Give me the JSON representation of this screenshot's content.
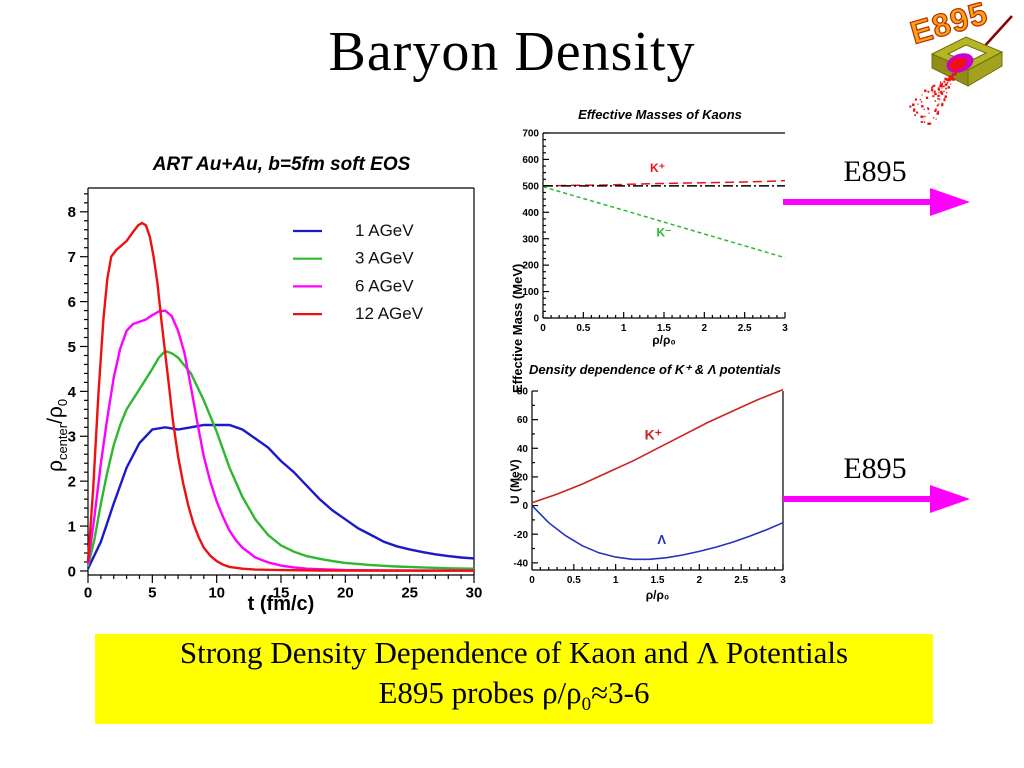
{
  "slide": {
    "title": "Baryon Density",
    "logo_text": "E895",
    "arrow_color": "#ff00ff",
    "callouts": [
      {
        "label": "E895"
      },
      {
        "label": "E895"
      }
    ],
    "banner": {
      "bg_color": "#ffff00",
      "line1": "Strong Density Dependence of Kaon and Λ Potentials",
      "line2_prefix": "E895 probes ρ/ρ",
      "line2_sub": "0",
      "line2_suffix": "≈3-6"
    }
  },
  "chart_data": [
    {
      "id": "density-evolution",
      "type": "line",
      "title": "ART Au+Au, b=5fm soft EOS",
      "xlabel": "t (fm/c)",
      "ylabel_parts": [
        "ρ",
        "center",
        "/ρ",
        "0"
      ],
      "xlim": [
        0,
        30
      ],
      "ylim": [
        -0.09,
        8.53
      ],
      "x_major": 5,
      "x_minor": 1,
      "y_major": 1,
      "y_minor": 0.2,
      "frame_sides": [
        "top",
        "bottom",
        "left",
        "right"
      ],
      "legend_position": "upper-right-inside",
      "grid": false,
      "series": [
        {
          "name": "1 AGeV",
          "color": "#1a1acc",
          "points": [
            [
              0,
              0.05
            ],
            [
              1,
              0.65
            ],
            [
              2,
              1.5
            ],
            [
              3,
              2.3
            ],
            [
              4,
              2.85
            ],
            [
              5,
              3.15
            ],
            [
              6,
              3.2
            ],
            [
              7,
              3.15
            ],
            [
              8,
              3.2
            ],
            [
              9,
              3.25
            ],
            [
              10,
              3.25
            ],
            [
              11,
              3.25
            ],
            [
              12,
              3.15
            ],
            [
              13,
              2.95
            ],
            [
              14,
              2.75
            ],
            [
              15,
              2.45
            ],
            [
              16,
              2.2
            ],
            [
              17,
              1.9
            ],
            [
              18,
              1.6
            ],
            [
              19,
              1.35
            ],
            [
              20,
              1.15
            ],
            [
              21,
              0.95
            ],
            [
              22,
              0.8
            ],
            [
              23,
              0.65
            ],
            [
              24,
              0.55
            ],
            [
              25,
              0.48
            ],
            [
              26,
              0.42
            ],
            [
              27,
              0.37
            ],
            [
              28,
              0.33
            ],
            [
              29,
              0.3
            ],
            [
              30,
              0.28
            ]
          ]
        },
        {
          "name": "3 AGeV",
          "color": "#2db82d",
          "points": [
            [
              0,
              0.1
            ],
            [
              0.5,
              0.7
            ],
            [
              1,
              1.5
            ],
            [
              1.5,
              2.2
            ],
            [
              2,
              2.8
            ],
            [
              2.5,
              3.25
            ],
            [
              3,
              3.6
            ],
            [
              4,
              4.05
            ],
            [
              5,
              4.5
            ],
            [
              5.5,
              4.75
            ],
            [
              6,
              4.9
            ],
            [
              6.5,
              4.85
            ],
            [
              7,
              4.75
            ],
            [
              8,
              4.4
            ],
            [
              8.5,
              4.1
            ],
            [
              9,
              3.8
            ],
            [
              10,
              3.1
            ],
            [
              11,
              2.3
            ],
            [
              12,
              1.65
            ],
            [
              13,
              1.15
            ],
            [
              14,
              0.8
            ],
            [
              15,
              0.57
            ],
            [
              16,
              0.43
            ],
            [
              17,
              0.33
            ],
            [
              18,
              0.27
            ],
            [
              19,
              0.22
            ],
            [
              20,
              0.18
            ],
            [
              22,
              0.13
            ],
            [
              24,
              0.1
            ],
            [
              26,
              0.08
            ],
            [
              28,
              0.06
            ],
            [
              30,
              0.05
            ]
          ]
        },
        {
          "name": "6 AGeV",
          "color": "#ff00ff",
          "points": [
            [
              0,
              0.15
            ],
            [
              0.5,
              1.2
            ],
            [
              1,
              2.4
            ],
            [
              1.5,
              3.4
            ],
            [
              2,
              4.3
            ],
            [
              2.5,
              4.95
            ],
            [
              3,
              5.35
            ],
            [
              3.5,
              5.5
            ],
            [
              4,
              5.55
            ],
            [
              4.5,
              5.6
            ],
            [
              5,
              5.7
            ],
            [
              5.5,
              5.78
            ],
            [
              6,
              5.8
            ],
            [
              6.5,
              5.68
            ],
            [
              7,
              5.35
            ],
            [
              7.5,
              4.85
            ],
            [
              8,
              4.1
            ],
            [
              8.5,
              3.3
            ],
            [
              9,
              2.55
            ],
            [
              9.5,
              2.0
            ],
            [
              10,
              1.55
            ],
            [
              10.5,
              1.2
            ],
            [
              11,
              0.9
            ],
            [
              11.5,
              0.68
            ],
            [
              12,
              0.52
            ],
            [
              13,
              0.3
            ],
            [
              14,
              0.19
            ],
            [
              15,
              0.12
            ],
            [
              16,
              0.08
            ],
            [
              17,
              0.05
            ],
            [
              18,
              0.04
            ],
            [
              20,
              0.02
            ],
            [
              25,
              0.01
            ],
            [
              30,
              0.01
            ]
          ]
        },
        {
          "name": "12 AGeV",
          "color": "#ee1111",
          "points": [
            [
              0,
              0.2
            ],
            [
              0.4,
              1.8
            ],
            [
              0.8,
              3.9
            ],
            [
              1.2,
              5.6
            ],
            [
              1.5,
              6.5
            ],
            [
              1.8,
              7.0
            ],
            [
              2.2,
              7.15
            ],
            [
              2.6,
              7.25
            ],
            [
              3,
              7.35
            ],
            [
              3.5,
              7.55
            ],
            [
              3.9,
              7.7
            ],
            [
              4.2,
              7.75
            ],
            [
              4.5,
              7.7
            ],
            [
              4.8,
              7.45
            ],
            [
              5.1,
              7.0
            ],
            [
              5.4,
              6.4
            ],
            [
              5.7,
              5.6
            ],
            [
              6,
              4.85
            ],
            [
              6.3,
              4.1
            ],
            [
              6.6,
              3.35
            ],
            [
              7,
              2.55
            ],
            [
              7.4,
              1.95
            ],
            [
              7.8,
              1.45
            ],
            [
              8.2,
              1.05
            ],
            [
              8.6,
              0.75
            ],
            [
              9,
              0.52
            ],
            [
              9.5,
              0.34
            ],
            [
              10,
              0.22
            ],
            [
              10.5,
              0.14
            ],
            [
              11,
              0.09
            ],
            [
              12,
              0.05
            ],
            [
              13,
              0.03
            ],
            [
              15,
              0.02
            ],
            [
              18,
              0.01
            ],
            [
              25,
              0.005
            ],
            [
              30,
              0.005
            ]
          ]
        }
      ]
    },
    {
      "id": "kaon-effective-mass",
      "type": "line",
      "title": "Effective Masses of Kaons",
      "xlabel": "ρ/ρ₀",
      "ylabel": "Effective Mass (MeV)",
      "xlim": [
        0,
        3
      ],
      "ylim": [
        0,
        700
      ],
      "x_major": 0.5,
      "x_minor": 0.1,
      "y_major": 100,
      "y_minor": 25,
      "frame_sides": [
        "top",
        "bottom",
        "left"
      ],
      "grid": false,
      "series": [
        {
          "name": "K⁺",
          "color": "#ee1111",
          "dash": "9,5",
          "points": [
            [
              0,
              500
            ],
            [
              0.45,
              502
            ],
            [
              0.75,
              503
            ],
            [
              1.05,
              506
            ],
            [
              1.35,
              508
            ],
            [
              1.65,
              510
            ],
            [
              2,
              512
            ],
            [
              2.4,
              514
            ],
            [
              2.75,
              517
            ],
            [
              3,
              520
            ]
          ]
        },
        {
          "name": "K⁻",
          "color": "#2db82d",
          "dash": "4,3",
          "points": [
            [
              0,
              497
            ],
            [
              0.5,
              452
            ],
            [
              1,
              408
            ],
            [
              1.5,
              363
            ],
            [
              2,
              318
            ],
            [
              2.5,
              273
            ],
            [
              3,
              228
            ]
          ]
        },
        {
          "name": "free kaon mass",
          "color": "#000000",
          "dash": "10,3,2,3",
          "points": [
            [
              0,
              500
            ],
            [
              3,
              500
            ]
          ]
        }
      ],
      "annotations": [
        {
          "text": "K⁺",
          "x": 1.42,
          "y": 552,
          "color": "#ee1111",
          "size": 12
        },
        {
          "text": "K⁻",
          "x": 1.5,
          "y": 308,
          "color": "#2db82d",
          "size": 12
        }
      ]
    },
    {
      "id": "potentials",
      "type": "line",
      "title": "Density dependence of K⁺ & Λ potentials",
      "xlabel": "ρ/ρ₀",
      "ylabel": "U (MeV)",
      "xlim": [
        0,
        3
      ],
      "ylim": [
        -45,
        80
      ],
      "x_major": 0.5,
      "x_minor": 0.1,
      "y_major": 20,
      "y_minor": 10,
      "frame_sides": [
        "left",
        "bottom",
        "right"
      ],
      "grid": false,
      "series": [
        {
          "name": "K⁺",
          "color": "#cc2222",
          "points": [
            [
              0,
              2
            ],
            [
              0.3,
              8
            ],
            [
              0.6,
              15
            ],
            [
              0.9,
              23
            ],
            [
              1.2,
              31
            ],
            [
              1.5,
              40
            ],
            [
              1.8,
              49
            ],
            [
              2.1,
              58
            ],
            [
              2.4,
              66
            ],
            [
              2.7,
              74
            ],
            [
              3,
              81
            ]
          ]
        },
        {
          "name": "Λ",
          "color": "#2233bb",
          "points": [
            [
              0,
              0
            ],
            [
              0.2,
              -12
            ],
            [
              0.4,
              -21
            ],
            [
              0.6,
              -28
            ],
            [
              0.8,
              -33
            ],
            [
              1,
              -36
            ],
            [
              1.2,
              -37.5
            ],
            [
              1.4,
              -37.5
            ],
            [
              1.6,
              -36.5
            ],
            [
              1.8,
              -34.5
            ],
            [
              2,
              -32
            ],
            [
              2.2,
              -29
            ],
            [
              2.4,
              -25.5
            ],
            [
              2.6,
              -21.5
            ],
            [
              2.8,
              -17
            ],
            [
              3,
              -12
            ]
          ]
        }
      ],
      "annotations": [
        {
          "text": "K⁺",
          "x": 1.45,
          "y": 46,
          "color": "#cc2222",
          "size": 14
        },
        {
          "text": "Λ",
          "x": 1.55,
          "y": -27,
          "color": "#2233bb",
          "size": 13
        }
      ]
    }
  ]
}
